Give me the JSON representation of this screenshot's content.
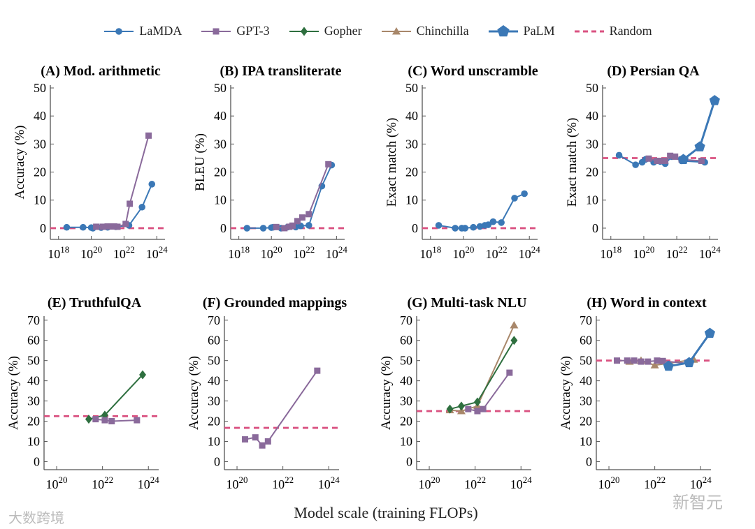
{
  "colors": {
    "LaMDA": "#3b78b6",
    "GPT-3": "#8a6a9b",
    "Gopher": "#2e6f3f",
    "Chinchilla": "#a8876a",
    "PaLM": "#3b78b6",
    "Random": "#da5281"
  },
  "legend": [
    "LaMDA",
    "GPT-3",
    "Gopher",
    "Chinchilla",
    "PaLM",
    "Random"
  ],
  "xlabel": "Model scale (training FLOPs)",
  "watermarks": {
    "left": "大数跨境",
    "right": "新智元"
  },
  "chart_data": [
    {
      "type": "line",
      "title": "(A) Mod. arithmetic",
      "ylabel": "Accuracy (%)",
      "xscale": "log10",
      "xlim": [
        17.5,
        24.5
      ],
      "ylim": [
        -4,
        51
      ],
      "yticks": [
        0,
        10,
        20,
        30,
        40,
        50
      ],
      "xticks": [
        18,
        20,
        22,
        24
      ],
      "random": 0,
      "series": [
        {
          "name": "LaMDA",
          "points": [
            [
              18.5,
              0.3
            ],
            [
              19.5,
              0.3
            ],
            [
              20,
              0.2
            ],
            [
              20.1,
              0
            ],
            [
              20.6,
              0.2
            ],
            [
              21,
              0.3
            ],
            [
              21.5,
              0.5
            ],
            [
              22.3,
              1
            ],
            [
              23.1,
              7.5
            ],
            [
              23.7,
              15.7
            ]
          ]
        },
        {
          "name": "GPT-3",
          "points": [
            [
              20.3,
              0.5
            ],
            [
              20.7,
              0.5
            ],
            [
              21,
              0.6
            ],
            [
              21.2,
              0.6
            ],
            [
              21.4,
              0.6
            ],
            [
              21.6,
              0.5
            ],
            [
              22.1,
              1.5
            ],
            [
              22.35,
              8.7
            ],
            [
              23.5,
              33
            ]
          ]
        }
      ]
    },
    {
      "type": "line",
      "title": "(B) IPA transliterate",
      "ylabel": "BLEU (%)",
      "xscale": "log10",
      "xlim": [
        17.5,
        24.5
      ],
      "ylim": [
        -4,
        51
      ],
      "yticks": [
        0,
        10,
        20,
        30,
        40,
        50
      ],
      "xticks": [
        18,
        20,
        22,
        24
      ],
      "random": 0,
      "series": [
        {
          "name": "LaMDA",
          "points": [
            [
              18.5,
              0
            ],
            [
              19.5,
              0
            ],
            [
              20,
              0.2
            ],
            [
              20.1,
              0.3
            ],
            [
              20.6,
              0
            ],
            [
              21,
              0.4
            ],
            [
              21.5,
              0.4
            ],
            [
              21.8,
              0.8
            ],
            [
              22.3,
              1
            ],
            [
              23.1,
              15
            ],
            [
              23.7,
              22.5
            ]
          ]
        },
        {
          "name": "GPT-3",
          "points": [
            [
              20.3,
              0.4
            ],
            [
              20.8,
              0
            ],
            [
              21.1,
              0.5
            ],
            [
              21.3,
              0.9
            ],
            [
              21.6,
              2.5
            ],
            [
              21.9,
              3.8
            ],
            [
              22.3,
              5
            ],
            [
              23.5,
              22.8
            ]
          ]
        }
      ]
    },
    {
      "type": "line",
      "title": "(C) Word unscramble",
      "ylabel": "Exact match (%)",
      "xscale": "log10",
      "xlim": [
        17.5,
        24.5
      ],
      "ylim": [
        -4,
        51
      ],
      "yticks": [
        0,
        10,
        20,
        30,
        40,
        50
      ],
      "xticks": [
        18,
        20,
        22,
        24
      ],
      "random": 0,
      "series": [
        {
          "name": "LaMDA",
          "points": [
            [
              18.5,
              1
            ],
            [
              19.5,
              0
            ],
            [
              19.9,
              0
            ],
            [
              20.1,
              0
            ],
            [
              20.6,
              0.3
            ],
            [
              21,
              0.6
            ],
            [
              21.3,
              1
            ],
            [
              21.5,
              1.2
            ],
            [
              21.8,
              2.3
            ],
            [
              22.3,
              2
            ],
            [
              23.1,
              10.7
            ],
            [
              23.7,
              12.3
            ]
          ]
        }
      ]
    },
    {
      "type": "line",
      "title": "(D) Persian QA",
      "ylabel": "Exact match (%)",
      "xscale": "log10",
      "xlim": [
        17.5,
        24.5
      ],
      "ylim": [
        -4,
        51
      ],
      "yticks": [
        0,
        10,
        20,
        30,
        40,
        50
      ],
      "xticks": [
        18,
        20,
        22,
        24
      ],
      "random": 25,
      "series": [
        {
          "name": "LaMDA",
          "points": [
            [
              18.5,
              26
            ],
            [
              19.5,
              22.6
            ],
            [
              19.9,
              23.5
            ],
            [
              20.1,
              24.5
            ],
            [
              20.6,
              23.5
            ],
            [
              21,
              23.8
            ],
            [
              21.3,
              23
            ],
            [
              21.7,
              25.5
            ],
            [
              22.3,
              24
            ],
            [
              23.7,
              23.5
            ]
          ]
        },
        {
          "name": "GPT-3",
          "points": [
            [
              20.3,
              24.8
            ],
            [
              20.8,
              24
            ],
            [
              21.1,
              24
            ],
            [
              21.3,
              24
            ],
            [
              21.6,
              25.8
            ],
            [
              21.9,
              25.5
            ],
            [
              22.3,
              24.5
            ],
            [
              23.5,
              24
            ]
          ]
        },
        {
          "name": "PaLM",
          "points": [
            [
              22.4,
              24.5
            ],
            [
              23.4,
              29
            ],
            [
              24.3,
              45.5
            ]
          ]
        }
      ]
    },
    {
      "type": "line",
      "title": "(E) TruthfulQA",
      "ylabel": "Accuracy (%)",
      "xscale": "log10",
      "xlim": [
        19.45,
        24.45
      ],
      "ylim": [
        -4,
        72
      ],
      "yticks": [
        0,
        10,
        20,
        30,
        40,
        50,
        60,
        70
      ],
      "xticks": [
        20,
        22,
        24
      ],
      "random": 22.5,
      "series": [
        {
          "name": "Gopher",
          "points": [
            [
              21.4,
              21
            ],
            [
              22.1,
              23
            ],
            [
              23.75,
              43
            ]
          ]
        },
        {
          "name": "GPT-3",
          "points": [
            [
              21.7,
              21
            ],
            [
              22.1,
              20.5
            ],
            [
              22.4,
              20
            ],
            [
              23.5,
              20.5
            ]
          ]
        }
      ]
    },
    {
      "type": "line",
      "title": "(F) Grounded mappings",
      "ylabel": "Accuracy (%)",
      "xscale": "log10",
      "xlim": [
        19.45,
        24.45
      ],
      "ylim": [
        -4,
        72
      ],
      "yticks": [
        0,
        10,
        20,
        30,
        40,
        50,
        60,
        70
      ],
      "xticks": [
        20,
        22,
        24
      ],
      "random": 16.7,
      "series": [
        {
          "name": "GPT-3",
          "points": [
            [
              20.35,
              11
            ],
            [
              20.8,
              12
            ],
            [
              21.1,
              8
            ],
            [
              21.35,
              10
            ],
            [
              23.5,
              45
            ]
          ]
        }
      ]
    },
    {
      "type": "line",
      "title": "(G) Multi-task NLU",
      "ylabel": "Accuracy (%)",
      "xscale": "log10",
      "xlim": [
        19.45,
        24.45
      ],
      "ylim": [
        -4,
        72
      ],
      "yticks": [
        0,
        10,
        20,
        30,
        40,
        50,
        60,
        70
      ],
      "xticks": [
        20,
        22,
        24
      ],
      "random": 25,
      "series": [
        {
          "name": "Chinchilla",
          "points": [
            [
              20.9,
              25.5
            ],
            [
              21.4,
              25
            ],
            [
              22.1,
              27.5
            ],
            [
              23.7,
              67.5
            ]
          ]
        },
        {
          "name": "GPT-3",
          "points": [
            [
              21.7,
              26
            ],
            [
              22.1,
              25
            ],
            [
              22.35,
              26
            ],
            [
              23.5,
              44
            ]
          ]
        },
        {
          "name": "Gopher",
          "points": [
            [
              20.9,
              26
            ],
            [
              21.4,
              27.5
            ],
            [
              22.1,
              29.5
            ],
            [
              23.7,
              60
            ]
          ]
        }
      ]
    },
    {
      "type": "line",
      "title": "(H) Word in context",
      "ylabel": "Accuracy (%)",
      "xscale": "log10",
      "xlim": [
        19.45,
        24.45
      ],
      "ylim": [
        -4,
        72
      ],
      "yticks": [
        0,
        10,
        20,
        30,
        40,
        50,
        60,
        70
      ],
      "xticks": [
        20,
        22,
        24
      ],
      "random": 50,
      "series": [
        {
          "name": "Chinchilla",
          "points": [
            [
              20.9,
              49.5
            ],
            [
              21.4,
              50
            ],
            [
              22,
              47.7
            ],
            [
              23.7,
              50.5
            ]
          ]
        },
        {
          "name": "GPT-3",
          "points": [
            [
              20.35,
              50
            ],
            [
              20.8,
              50
            ],
            [
              21.1,
              50
            ],
            [
              21.4,
              49.5
            ],
            [
              21.7,
              49.5
            ],
            [
              22.1,
              50
            ],
            [
              22.35,
              49.8
            ],
            [
              23.5,
              48.5
            ]
          ]
        },
        {
          "name": "PaLM",
          "points": [
            [
              22.6,
              47.2
            ],
            [
              23.5,
              49
            ],
            [
              24.4,
              63.5
            ]
          ]
        }
      ]
    }
  ]
}
